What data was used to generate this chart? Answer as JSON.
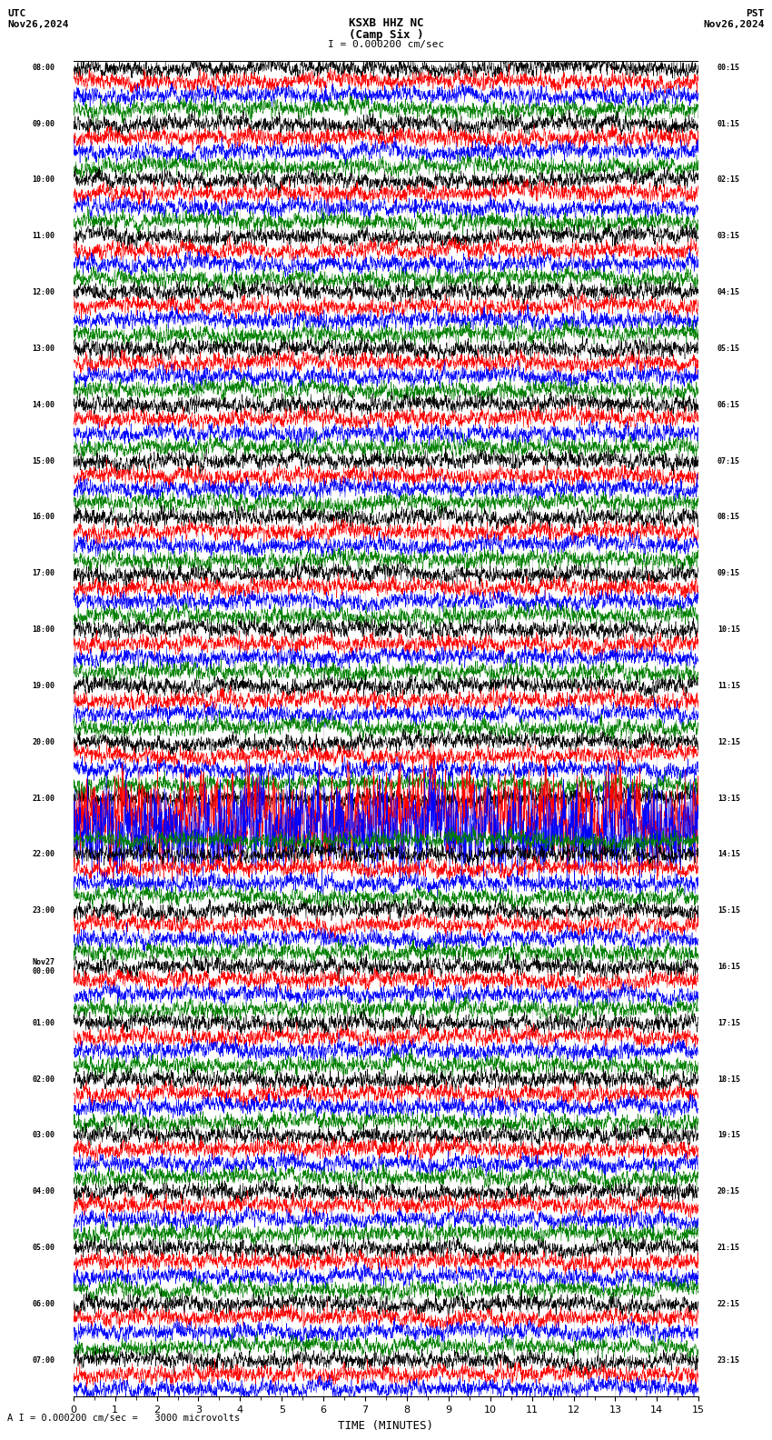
{
  "title_line1": "KSXB HHZ NC",
  "title_line2": "(Camp Six )",
  "scale_label": "I = 0.000200 cm/sec",
  "left_header": "UTC",
  "left_date": "Nov26,2024",
  "right_header": "PST",
  "right_date": "Nov26,2024",
  "xlabel": "TIME (MINUTES)",
  "bottom_note": "A I = 0.000200 cm/sec =   3000 microvolts",
  "bg_color": "#ffffff",
  "colors": [
    "black",
    "red",
    "blue",
    "green"
  ],
  "xlim": [
    0,
    15
  ],
  "utc_times": [
    "08:00",
    "",
    "",
    "",
    "09:00",
    "",
    "",
    "",
    "10:00",
    "",
    "",
    "",
    "11:00",
    "",
    "",
    "",
    "12:00",
    "",
    "",
    "",
    "13:00",
    "",
    "",
    "",
    "14:00",
    "",
    "",
    "",
    "15:00",
    "",
    "",
    "",
    "16:00",
    "",
    "",
    "",
    "17:00",
    "",
    "",
    "",
    "18:00",
    "",
    "",
    "",
    "19:00",
    "",
    "",
    "",
    "20:00",
    "",
    "",
    "",
    "21:00",
    "",
    "",
    "",
    "22:00",
    "",
    "",
    "",
    "23:00",
    "",
    "",
    "",
    "Nov27\n00:00",
    "",
    "",
    "",
    "01:00",
    "",
    "",
    "",
    "02:00",
    "",
    "",
    "",
    "03:00",
    "",
    "",
    "",
    "04:00",
    "",
    "",
    "",
    "05:00",
    "",
    "",
    "",
    "06:00",
    "",
    "",
    "",
    "07:00",
    "",
    ""
  ],
  "pst_times": [
    "00:15",
    "",
    "",
    "",
    "01:15",
    "",
    "",
    "",
    "02:15",
    "",
    "",
    "",
    "03:15",
    "",
    "",
    "",
    "04:15",
    "",
    "",
    "",
    "05:15",
    "",
    "",
    "",
    "06:15",
    "",
    "",
    "",
    "07:15",
    "",
    "",
    "",
    "08:15",
    "",
    "",
    "",
    "09:15",
    "",
    "",
    "",
    "10:15",
    "",
    "",
    "",
    "11:15",
    "",
    "",
    "",
    "12:15",
    "",
    "",
    "",
    "13:15",
    "",
    "",
    "",
    "14:15",
    "",
    "",
    "",
    "15:15",
    "",
    "",
    "",
    "16:15",
    "",
    "",
    "",
    "17:15",
    "",
    "",
    "",
    "18:15",
    "",
    "",
    "",
    "19:15",
    "",
    "",
    "",
    "20:15",
    "",
    "",
    "",
    "21:15",
    "",
    "",
    "",
    "22:15",
    "",
    "",
    "",
    "23:15",
    "",
    ""
  ],
  "large_event_row": 53,
  "large_event_row2": 54
}
